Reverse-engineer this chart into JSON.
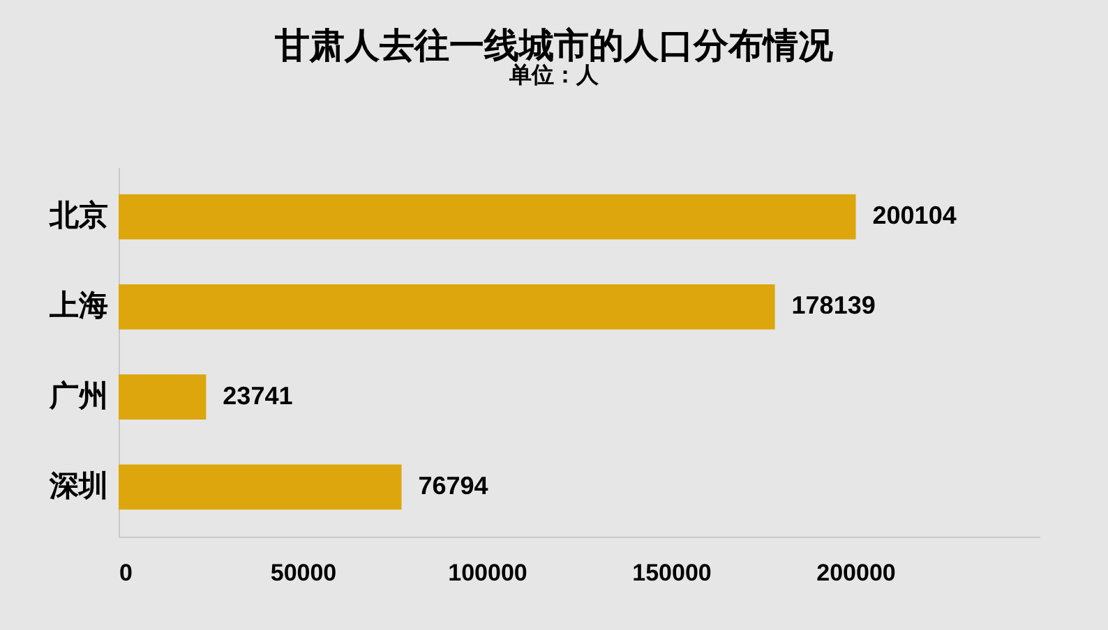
{
  "chart_data": {
    "type": "bar",
    "orientation": "horizontal",
    "title": "甘肃人去往一线城市的人口分布情况",
    "subtitle": "单位：人",
    "categories": [
      "北京",
      "上海",
      "广州",
      "深圳"
    ],
    "values": [
      200104,
      178139,
      23741,
      76794
    ],
    "color": "#dca60c",
    "xlim": [
      0,
      250000
    ],
    "xticks": [
      0,
      50000,
      100000,
      150000,
      200000
    ],
    "grid": false,
    "data_labels": true
  }
}
